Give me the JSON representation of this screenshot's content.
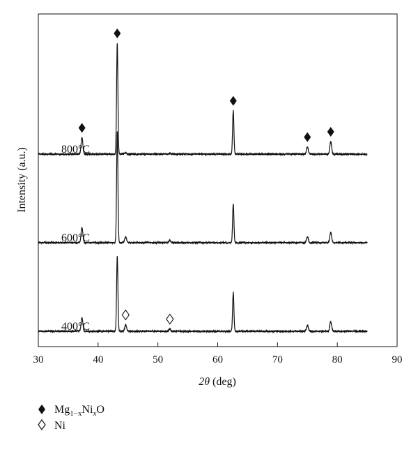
{
  "chart_data": {
    "type": "line",
    "xlabel": "2θ (deg)",
    "ylabel": "Intensity (a.u.)",
    "xlim": [
      30,
      90
    ],
    "xticks": [
      30,
      40,
      50,
      60,
      70,
      80,
      90
    ],
    "yticks_shown": false,
    "grid": false,
    "series": [
      {
        "name": "800°C",
        "baseline": 0.0,
        "peaks": [
          {
            "x": 37.3,
            "height": 0.55
          },
          {
            "x": 43.2,
            "height": 3.7
          },
          {
            "x": 44.6,
            "height": 0.05
          },
          {
            "x": 52.0,
            "height": 0.03
          },
          {
            "x": 62.6,
            "height": 1.45
          },
          {
            "x": 75.0,
            "height": 0.24
          },
          {
            "x": 78.9,
            "height": 0.42
          }
        ]
      },
      {
        "name": "600°C",
        "baseline": 0.0,
        "peaks": [
          {
            "x": 37.3,
            "height": 0.5
          },
          {
            "x": 43.2,
            "height": 3.7
          },
          {
            "x": 44.6,
            "height": 0.2
          },
          {
            "x": 52.0,
            "height": 0.08
          },
          {
            "x": 62.6,
            "height": 1.3
          },
          {
            "x": 75.0,
            "height": 0.2
          },
          {
            "x": 78.9,
            "height": 0.35
          }
        ]
      },
      {
        "name": "400°C",
        "baseline": 0.0,
        "peaks": [
          {
            "x": 37.3,
            "height": 0.45
          },
          {
            "x": 43.2,
            "height": 2.5
          },
          {
            "x": 44.6,
            "height": 0.22
          },
          {
            "x": 52.0,
            "height": 0.08
          },
          {
            "x": 62.6,
            "height": 1.3
          },
          {
            "x": 75.0,
            "height": 0.2
          },
          {
            "x": 78.9,
            "height": 0.32
          }
        ]
      }
    ],
    "markers": [
      {
        "series": "800°C",
        "x": 37.3,
        "symbol": "filled-diamond"
      },
      {
        "series": "800°C",
        "x": 43.2,
        "symbol": "filled-diamond"
      },
      {
        "series": "800°C",
        "x": 62.6,
        "symbol": "filled-diamond"
      },
      {
        "series": "800°C",
        "x": 75.0,
        "symbol": "filled-diamond"
      },
      {
        "series": "800°C",
        "x": 78.9,
        "symbol": "filled-diamond"
      },
      {
        "series": "400°C",
        "x": 44.6,
        "symbol": "open-diamond"
      },
      {
        "series": "400°C",
        "x": 52.0,
        "symbol": "open-diamond"
      }
    ],
    "legend": {
      "placement": "bottom-left",
      "entries": [
        {
          "symbol": "filled-diamond",
          "main": "Mg",
          "sub": "1−x",
          "mid": "Ni",
          "sub2": "x",
          "end": "O"
        },
        {
          "symbol": "open-diamond",
          "main": "Ni"
        }
      ]
    }
  }
}
